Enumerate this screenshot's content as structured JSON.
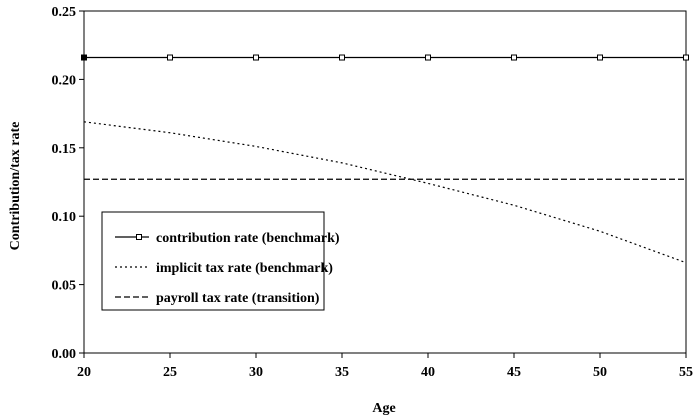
{
  "chart_data": {
    "type": "line",
    "title": "",
    "xlabel": "Age",
    "ylabel": "Contribution/tax rate",
    "xlim": [
      20,
      55
    ],
    "ylim": [
      0,
      0.25
    ],
    "x_ticks": [
      20,
      25,
      30,
      35,
      40,
      45,
      50,
      55
    ],
    "y_ticks": [
      0.0,
      0.05,
      0.1,
      0.15,
      0.2,
      0.25
    ],
    "x_tick_labels": [
      "20",
      "25",
      "30",
      "35",
      "40",
      "45",
      "50",
      "55"
    ],
    "y_tick_labels": [
      "0.00",
      "0.05",
      "0.10",
      "0.15",
      "0.20",
      "0.25"
    ],
    "grid": false,
    "legend_position": "lower-left",
    "series": [
      {
        "name": "contribution rate (benchmark)",
        "style": "solid-with-square-markers",
        "color": "#000000",
        "x": [
          20,
          25,
          30,
          35,
          40,
          45,
          50,
          55
        ],
        "y": [
          0.216,
          0.216,
          0.216,
          0.216,
          0.216,
          0.216,
          0.216,
          0.216
        ]
      },
      {
        "name": "implicit tax rate (benchmark)",
        "style": "dotted",
        "color": "#000000",
        "x": [
          20,
          25,
          30,
          35,
          40,
          45,
          50,
          55
        ],
        "y": [
          0.169,
          0.161,
          0.151,
          0.139,
          0.124,
          0.108,
          0.089,
          0.066
        ]
      },
      {
        "name": "payroll tax rate (transition)",
        "style": "dashed",
        "color": "#000000",
        "x": [
          20,
          55
        ],
        "y": [
          0.127,
          0.127
        ]
      }
    ]
  }
}
